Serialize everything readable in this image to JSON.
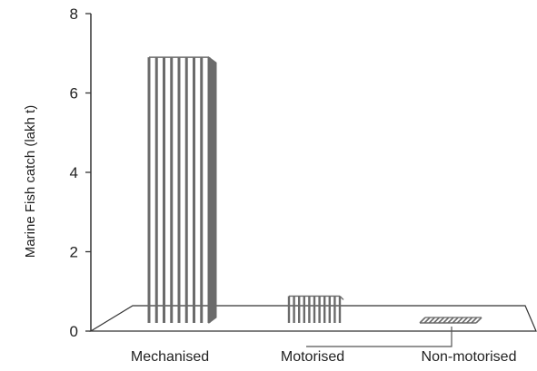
{
  "chart_data": {
    "type": "bar",
    "style": "3d",
    "title": "",
    "xlabel": "",
    "ylabel": "Marine Fish catch (lakh t)",
    "categories": [
      "Mechanised",
      "Motorised",
      "Non-motorised"
    ],
    "values": [
      6.9,
      0.95,
      0.2
    ],
    "ylim": [
      0,
      8
    ],
    "yticks": [
      0,
      2,
      4,
      6,
      8
    ],
    "grid": false,
    "legend": "none",
    "colors": {
      "stripe": "#6b6b6b",
      "bar_face": "#ffffff",
      "axis": "#333333"
    }
  }
}
